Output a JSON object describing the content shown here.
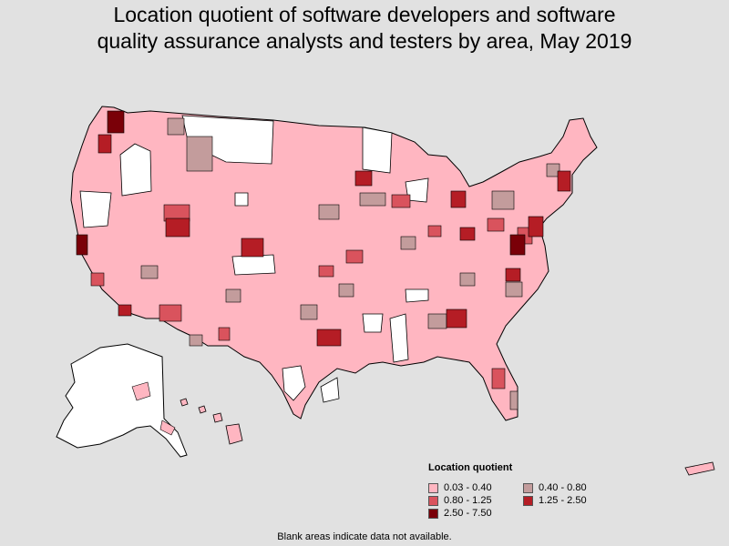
{
  "title_line1": "Location quotient of software developers and software",
  "title_line2": "quality assurance analysts and testers by area, May 2019",
  "legend": {
    "title": "Location quotient",
    "items": [
      {
        "label": "0.03 - 0.40",
        "color": "#ffb6c1"
      },
      {
        "label": "0.40 - 0.80",
        "color": "#c39c9c"
      },
      {
        "label": "0.80 - 1.25",
        "color": "#d9535d"
      },
      {
        "label": "1.25 - 2.50",
        "color": "#b51d25"
      },
      {
        "label": "2.50 - 7.50",
        "color": "#7a0008"
      }
    ]
  },
  "footnote": "Blank areas indicate data not available.",
  "colors": {
    "background": "#e1e1e1",
    "no_data": "#ffffff",
    "border": "#000000"
  }
}
